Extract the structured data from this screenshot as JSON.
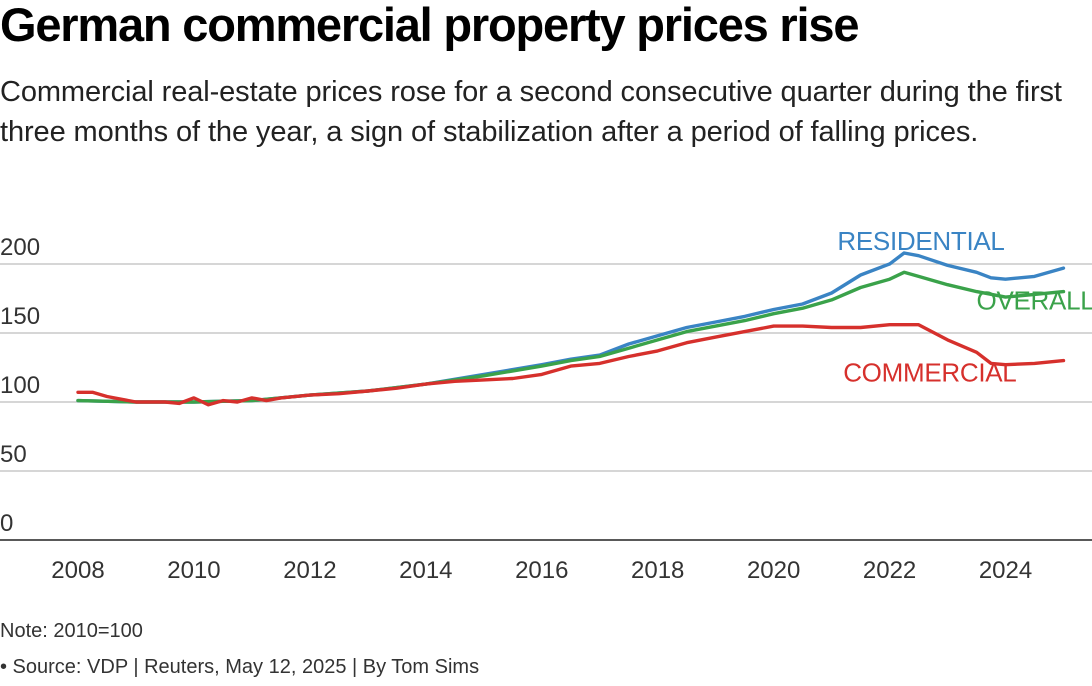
{
  "header": {
    "title": "German commercial property prices rise",
    "subtitle": "Commercial real-estate prices rose for a second consecutive quarter during the first three months of the year, a sign of stabilization after a period of falling prices."
  },
  "footer": {
    "note": "Note: 2010=100",
    "source": "• Source: VDP | Reuters, May 12, 2025 | By Tom Sims"
  },
  "chart_data": {
    "type": "line",
    "title": "",
    "xlabel": "",
    "ylabel": "",
    "xlim": [
      2008,
      2025.25
    ],
    "ylim": [
      0,
      200
    ],
    "yticks": [
      0,
      50,
      100,
      150,
      200
    ],
    "xticks": [
      2008,
      2010,
      2012,
      2014,
      2016,
      2018,
      2020,
      2022,
      2024
    ],
    "grid": "horizontal",
    "legend": "direct-labels",
    "series": [
      {
        "name": "RESIDENTIAL",
        "color": "#3a84c4",
        "label_near": [
          2021.1,
          210
        ],
        "data": [
          [
            2008,
            101
          ],
          [
            2009,
            100
          ],
          [
            2010,
            100
          ],
          [
            2011,
            101
          ],
          [
            2012,
            105
          ],
          [
            2013,
            108
          ],
          [
            2014,
            113
          ],
          [
            2015,
            120
          ],
          [
            2016,
            127
          ],
          [
            2016.5,
            131
          ],
          [
            2017,
            134
          ],
          [
            2017.5,
            142
          ],
          [
            2018,
            148
          ],
          [
            2018.5,
            154
          ],
          [
            2019,
            158
          ],
          [
            2019.5,
            162
          ],
          [
            2020,
            167
          ],
          [
            2020.5,
            171
          ],
          [
            2021,
            179
          ],
          [
            2021.5,
            192
          ],
          [
            2022,
            200
          ],
          [
            2022.25,
            208
          ],
          [
            2022.5,
            206
          ],
          [
            2023,
            199
          ],
          [
            2023.5,
            194
          ],
          [
            2023.75,
            190
          ],
          [
            2024,
            189
          ],
          [
            2024.5,
            191
          ],
          [
            2025,
            197
          ]
        ]
      },
      {
        "name": "OVERALL",
        "color": "#3aa24a",
        "label_near": [
          2023.5,
          167
        ],
        "data": [
          [
            2008,
            101
          ],
          [
            2009,
            100
          ],
          [
            2010,
            100
          ],
          [
            2011,
            101
          ],
          [
            2012,
            105
          ],
          [
            2013,
            108
          ],
          [
            2014,
            113
          ],
          [
            2015,
            119
          ],
          [
            2016,
            126
          ],
          [
            2016.5,
            130
          ],
          [
            2017,
            133
          ],
          [
            2017.5,
            139
          ],
          [
            2018,
            145
          ],
          [
            2018.5,
            151
          ],
          [
            2019,
            155
          ],
          [
            2019.5,
            159
          ],
          [
            2020,
            164
          ],
          [
            2020.5,
            168
          ],
          [
            2021,
            174
          ],
          [
            2021.5,
            183
          ],
          [
            2022,
            189
          ],
          [
            2022.25,
            194
          ],
          [
            2022.5,
            191
          ],
          [
            2023,
            185
          ],
          [
            2023.5,
            180
          ],
          [
            2024,
            176
          ],
          [
            2024.5,
            178
          ],
          [
            2025,
            180
          ]
        ]
      },
      {
        "name": "COMMERCIAL",
        "color": "#d6302c",
        "label_near": [
          2021.2,
          115
        ],
        "data": [
          [
            2008,
            107
          ],
          [
            2008.25,
            107
          ],
          [
            2008.5,
            104
          ],
          [
            2009,
            100
          ],
          [
            2009.5,
            100
          ],
          [
            2009.75,
            99
          ],
          [
            2010,
            103
          ],
          [
            2010.25,
            98
          ],
          [
            2010.5,
            101
          ],
          [
            2010.75,
            100
          ],
          [
            2011,
            103
          ],
          [
            2011.25,
            101
          ],
          [
            2011.5,
            103
          ],
          [
            2012,
            105
          ],
          [
            2012.5,
            106
          ],
          [
            2013,
            108
          ],
          [
            2013.5,
            110
          ],
          [
            2014,
            113
          ],
          [
            2014.5,
            115
          ],
          [
            2015,
            116
          ],
          [
            2015.5,
            117
          ],
          [
            2016,
            120
          ],
          [
            2016.5,
            126
          ],
          [
            2017,
            128
          ],
          [
            2017.5,
            133
          ],
          [
            2018,
            137
          ],
          [
            2018.5,
            143
          ],
          [
            2019,
            147
          ],
          [
            2019.5,
            151
          ],
          [
            2020,
            155
          ],
          [
            2020.5,
            155
          ],
          [
            2021,
            154
          ],
          [
            2021.5,
            154
          ],
          [
            2022,
            156
          ],
          [
            2022.5,
            156
          ],
          [
            2023,
            145
          ],
          [
            2023.5,
            136
          ],
          [
            2023.75,
            128
          ],
          [
            2024,
            127
          ],
          [
            2024.5,
            128
          ],
          [
            2025,
            130
          ]
        ]
      }
    ]
  }
}
